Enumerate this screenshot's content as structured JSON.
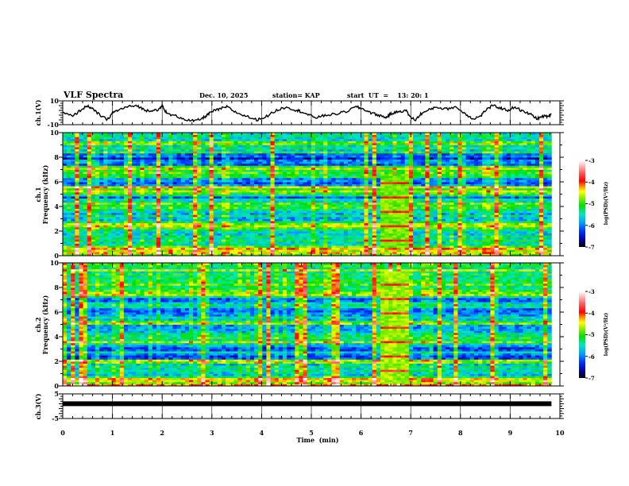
{
  "header": {
    "title": "VLF Spectra",
    "date": "Dec. 10, 2025",
    "station": "station= KAP",
    "start": "start  UT  =    13: 20: 1"
  },
  "chart_data": [
    {
      "name": "ch1-voltage",
      "type": "line",
      "ylabel": "ch.1(V)",
      "ylim": [
        -10,
        10
      ],
      "yticks": [
        "10",
        "-10"
      ],
      "xlim": [
        0,
        10
      ],
      "data_end_min": 9.83,
      "series": [
        {
          "name": "ch.1",
          "color": "#000000",
          "x": [
            0,
            0.2,
            0.35,
            0.5,
            0.6,
            0.75,
            0.9,
            1.0,
            1.1,
            1.3,
            1.5,
            1.65,
            1.8,
            1.95,
            2.0,
            2.1,
            2.3,
            2.5,
            2.65,
            2.8,
            2.9,
            3.0,
            3.15,
            3.3,
            3.5,
            3.7,
            3.9,
            4.1,
            4.3,
            4.5,
            4.7,
            4.8,
            4.95,
            5.1,
            5.3,
            5.5,
            5.7,
            5.9,
            6.05,
            6.2,
            6.35,
            6.5,
            6.6,
            6.75,
            6.9,
            7.0,
            7.1,
            7.2,
            7.35,
            7.5,
            7.7,
            7.9,
            8.1,
            8.25,
            8.4,
            8.5,
            8.65,
            8.8,
            8.95,
            9.1,
            9.25,
            9.4,
            9.55,
            9.65,
            9.75,
            9.83
          ],
          "y": [
            0,
            -3,
            2,
            6,
            3,
            -2,
            -6,
            0,
            2,
            5,
            6,
            2,
            2,
            3,
            6,
            -1,
            -3,
            -6,
            -7,
            -5,
            -2,
            1,
            3,
            5,
            0,
            -3,
            -6,
            -3,
            2,
            5,
            2,
            1,
            -2,
            -4,
            -2,
            -1,
            1,
            5,
            3,
            0,
            -2,
            -4,
            -1,
            1,
            2,
            -4,
            -6,
            -1,
            2,
            5,
            3,
            5,
            -1,
            -5,
            -3,
            2,
            6,
            4,
            2,
            5,
            1,
            -1,
            -5,
            -3,
            -3,
            -1
          ]
        }
      ]
    },
    {
      "name": "ch1-spectrogram",
      "type": "heatmap",
      "ylabel": "ch.1\nFrequency  (kHz)",
      "ylim": [
        0,
        10
      ],
      "yticks": [
        "0",
        "2",
        "4",
        "6",
        "8",
        "10"
      ],
      "xlim": [
        0,
        10
      ],
      "colorbar": {
        "label": "log(PSD)(V²/Hz)",
        "range": [
          -7,
          -3
        ],
        "ticks": [
          "-3",
          "-4",
          "-5",
          "-6",
          "-7"
        ]
      },
      "bands_khz": [
        {
          "f": [
            0.0,
            0.9
          ],
          "level": -4.6
        },
        {
          "f": [
            0.9,
            2.1
          ],
          "level": -5.3
        },
        {
          "f": [
            2.1,
            2.6
          ],
          "level": -4.7
        },
        {
          "f": [
            2.6,
            3.7
          ],
          "level": -5.7
        },
        {
          "f": [
            3.7,
            4.3
          ],
          "level": -5.0
        },
        {
          "f": [
            4.3,
            5.0
          ],
          "level": -5.8
        },
        {
          "f": [
            5.0,
            5.6
          ],
          "level": -4.7
        },
        {
          "f": [
            5.6,
            6.3
          ],
          "level": -6.3
        },
        {
          "f": [
            6.3,
            7.3
          ],
          "level": -5.0
        },
        {
          "f": [
            7.3,
            8.3
          ],
          "level": -6.2
        },
        {
          "f": [
            8.3,
            10.0
          ],
          "level": -5.3
        }
      ],
      "burst": {
        "t": [
          6.4,
          7.0
        ],
        "f": [
          0.6,
          6.6
        ],
        "level": -4.8
      }
    },
    {
      "name": "ch2-spectrogram",
      "type": "heatmap",
      "ylabel": "ch.2\nFrequency  (kHz)",
      "ylim": [
        0,
        10
      ],
      "yticks": [
        "0",
        "2",
        "4",
        "6",
        "8",
        "10"
      ],
      "xlim": [
        0,
        10
      ],
      "colorbar": {
        "label": "log(PSD)(V²/Hz)",
        "range": [
          -7,
          -3
        ],
        "ticks": [
          "-3",
          "-4",
          "-5",
          "-6",
          "-7"
        ]
      },
      "bands_khz": [
        {
          "f": [
            0.0,
            0.7
          ],
          "level": -4.6
        },
        {
          "f": [
            0.7,
            1.9
          ],
          "level": -5.4
        },
        {
          "f": [
            1.9,
            2.2
          ],
          "level": -4.9
        },
        {
          "f": [
            2.2,
            3.3
          ],
          "level": -6.0
        },
        {
          "f": [
            3.3,
            4.3
          ],
          "level": -5.2
        },
        {
          "f": [
            4.3,
            5.0
          ],
          "level": -5.7
        },
        {
          "f": [
            5.0,
            5.4
          ],
          "level": -5.0
        },
        {
          "f": [
            5.4,
            7.4
          ],
          "level": -5.8
        },
        {
          "f": [
            7.4,
            10.0
          ],
          "level": -5.1
        }
      ],
      "burst": {
        "t": [
          6.4,
          7.0
        ],
        "f": [
          0.1,
          9.4
        ],
        "level": -4.7
      }
    },
    {
      "name": "ch3-voltage",
      "type": "line",
      "ylabel": "ch.3(V)",
      "ylim": [
        -5,
        5
      ],
      "yticks": [
        "5",
        "-5"
      ],
      "xlim": [
        0,
        10
      ],
      "data_end_min": 9.83,
      "series": [
        {
          "name": "ch.3",
          "color": "#000000",
          "x": [
            0,
            9.83
          ],
          "y": [
            1.0,
            1.0
          ]
        }
      ]
    }
  ],
  "xaxis": {
    "label": "Time  (min)",
    "range": [
      0,
      10
    ],
    "ticks": [
      "0",
      "1",
      "2",
      "3",
      "4",
      "5",
      "6",
      "7",
      "8",
      "9",
      "10"
    ]
  }
}
